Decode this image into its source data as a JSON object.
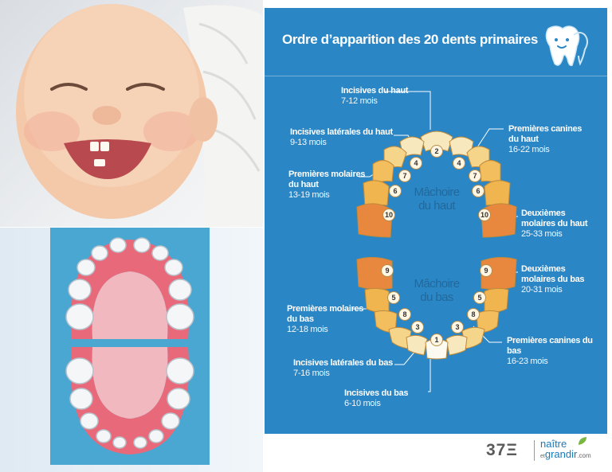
{
  "title": "Ordre d’apparition des 20 dents primaires",
  "jaw_upper_caption": [
    "Mâchoire",
    "du haut"
  ],
  "jaw_lower_caption": [
    "Mâchoire",
    "du bas"
  ],
  "labels": {
    "upper_incisors": {
      "name": "Incisives du haut",
      "months": "7-12 mois"
    },
    "upper_lateral_incisors": {
      "name": "Incisives latérales du haut",
      "months": "9-13 mois"
    },
    "upper_first_molars": {
      "name": "Premières molaires du haut",
      "months": "13-19 mois"
    },
    "upper_first_canines": {
      "name": "Premières canines du haut",
      "months": "16-22 mois"
    },
    "upper_second_molars": {
      "name": "Deuxièmes molaires du haut",
      "months": "25-33 mois"
    },
    "lower_second_molars": {
      "name": "Deuxièmes molaires du bas",
      "months": "20-31 mois"
    },
    "lower_first_molars": {
      "name": "Premières molaires du bas",
      "months": "12-18 mois"
    },
    "lower_first_canines": {
      "name": "Premières canines du bas",
      "months": "16-23 mois"
    },
    "lower_lateral_incisors": {
      "name": "Incisives latérales du bas",
      "months": "7-16 mois"
    },
    "lower_incisors": {
      "name": "Incisives du bas",
      "months": "6-10 mois"
    }
  },
  "tooth_order": {
    "upper": [
      "2",
      "4",
      "4",
      "7",
      "7",
      "6",
      "6",
      "10",
      "10"
    ],
    "lower": [
      "1",
      "3",
      "3",
      "8",
      "8",
      "5",
      "5",
      "9",
      "9"
    ]
  },
  "footer": {
    "brand1": "37Ξ",
    "brand2_line1": "naître",
    "brand2_line2": "grandir",
    "brand2_suffix": ".com",
    "brand2_small": "et"
  },
  "colors": {
    "panel": "#2b86c5",
    "tooth_light": "#f6e3b0",
    "tooth_mid": "#f1b34d",
    "tooth_dark": "#e7843a",
    "gum": "#e06b7b"
  }
}
